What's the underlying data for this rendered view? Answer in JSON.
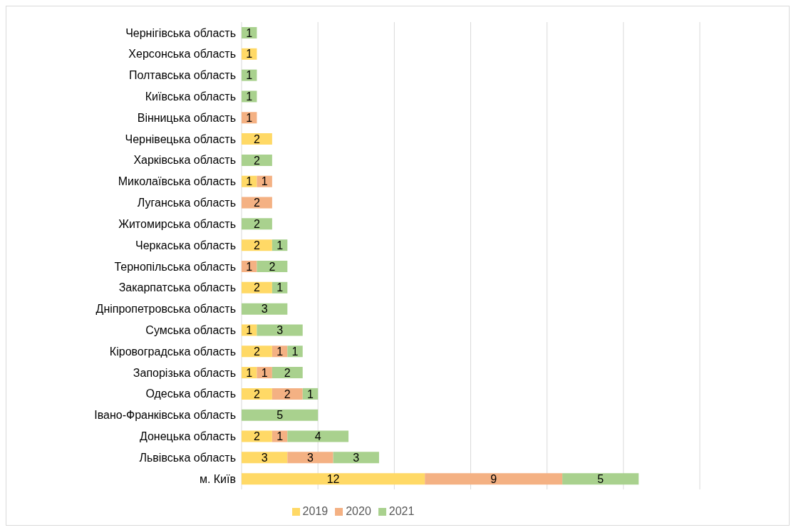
{
  "chart_data": {
    "type": "bar",
    "orientation": "horizontal",
    "stacked": true,
    "data_labels": true,
    "grid": "x",
    "legend": "bottom",
    "tick_labels": "y",
    "categories": [
      "Чернігівська область",
      "Херсонська область",
      "Полтавська область",
      "Київська область",
      "Вінницька область",
      "Чернівецька область",
      "Харківська область",
      "Миколаївська область",
      "Луганська область",
      "Житомирська область",
      "Черкаська область",
      "Тернопільська область",
      "Закарпатська область",
      "Дніпропетровська область",
      "Сумська область",
      "Кіровоградська область",
      "Запорізька область",
      "Одеська область",
      "Івано-Франківська область",
      "Донецька область",
      "Львівська область",
      "м. Київ"
    ],
    "xlim": [
      0,
      30
    ],
    "xticks": [
      {
        "value": 0,
        "label": null
      },
      {
        "value": 5,
        "label": null
      },
      {
        "value": 10,
        "label": null
      },
      {
        "value": 15,
        "label": null
      },
      {
        "value": 20,
        "label": null
      },
      {
        "value": 25,
        "label": null
      },
      {
        "value": 30,
        "label": null
      }
    ],
    "series": [
      {
        "name": "2019",
        "color": "#ffd966",
        "values": [
          null,
          1,
          null,
          null,
          null,
          2,
          null,
          1,
          null,
          null,
          2,
          null,
          2,
          null,
          1,
          2,
          1,
          2,
          null,
          2,
          3,
          12
        ]
      },
      {
        "name": "2020",
        "color": "#f4b183",
        "values": [
          null,
          null,
          null,
          null,
          1,
          null,
          null,
          1,
          2,
          null,
          null,
          1,
          null,
          null,
          null,
          1,
          1,
          2,
          null,
          1,
          3,
          9
        ]
      },
      {
        "name": "2021",
        "color": "#a9d18e",
        "values": [
          1,
          null,
          1,
          1,
          null,
          null,
          2,
          null,
          null,
          2,
          1,
          2,
          1,
          3,
          3,
          1,
          2,
          1,
          5,
          4,
          3,
          5
        ]
      }
    ]
  }
}
